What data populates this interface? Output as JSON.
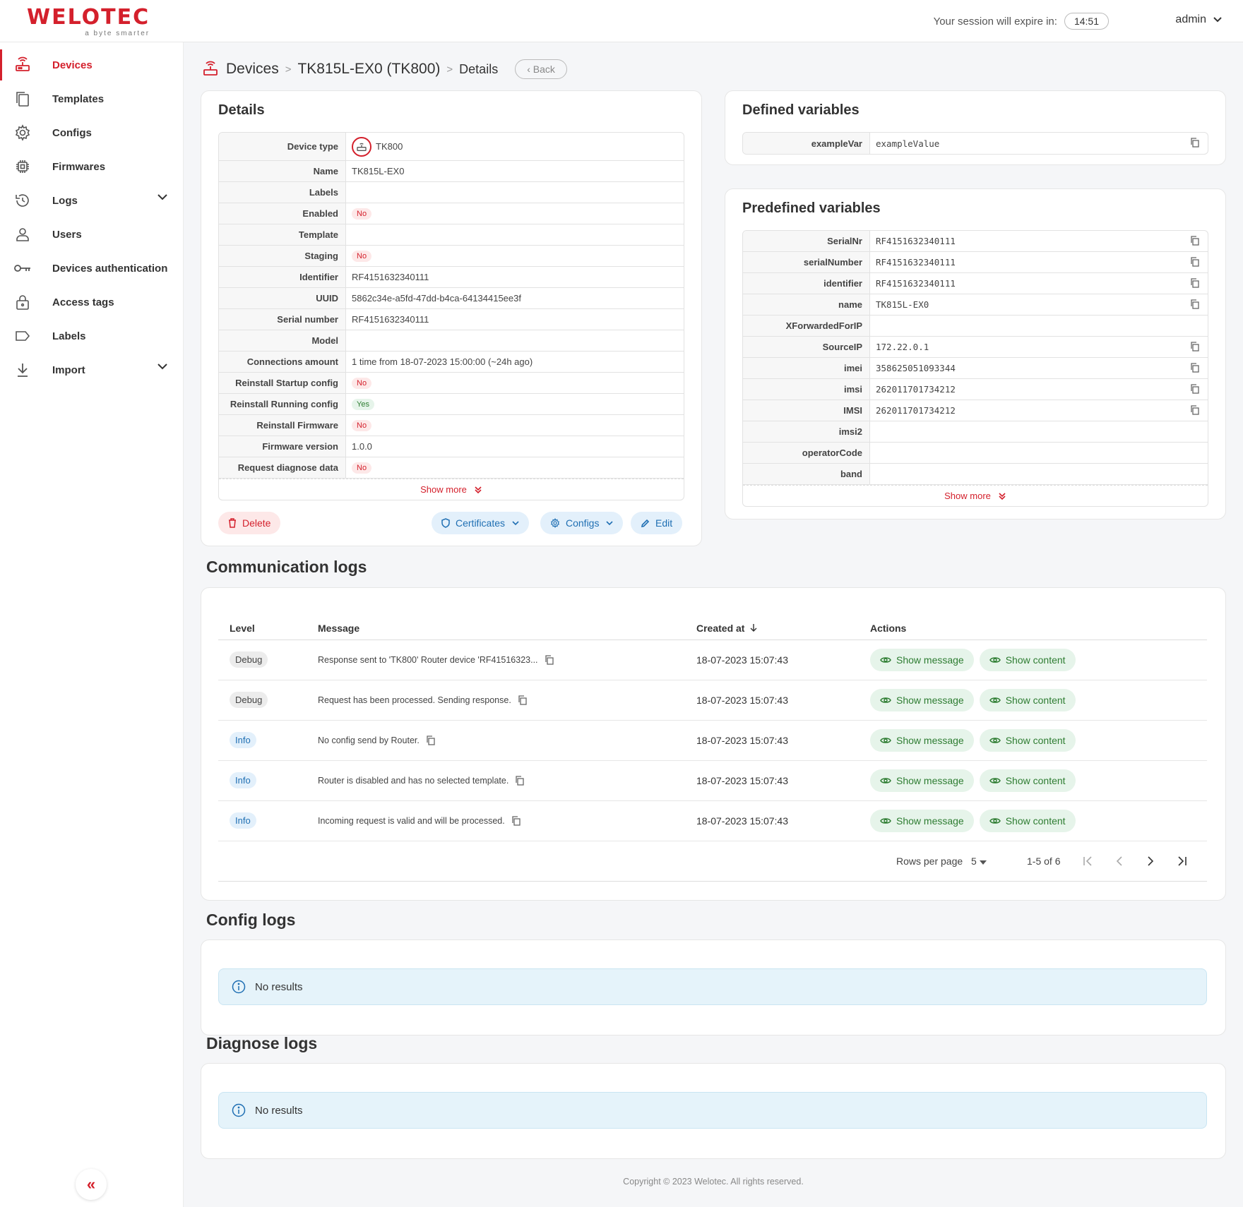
{
  "header": {
    "logo": "WELOTEC",
    "logo_tagline": "a byte smarter",
    "session_label": "Your session will expire in:",
    "session_timer": "14:51",
    "user": "admin"
  },
  "sidebar": {
    "items": [
      {
        "label": "Devices",
        "icon": "router-icon"
      },
      {
        "label": "Templates",
        "icon": "copy-icon"
      },
      {
        "label": "Configs",
        "icon": "gear-icon"
      },
      {
        "label": "Firmwares",
        "icon": "chip-icon"
      },
      {
        "label": "Logs",
        "icon": "history-icon"
      },
      {
        "label": "Users",
        "icon": "user-icon"
      },
      {
        "label": "Devices authentication",
        "icon": "key-icon"
      },
      {
        "label": "Access tags",
        "icon": "lock-icon"
      },
      {
        "label": "Labels",
        "icon": "label-icon"
      },
      {
        "label": "Import",
        "icon": "download-icon"
      }
    ],
    "collapse_glyph": "«"
  },
  "breadcrumb": {
    "root": "Devices",
    "sep": ">",
    "device": "TK815L-EX0 (TK800)",
    "page": "Details",
    "back": "Back"
  },
  "details": {
    "title": "Details",
    "device_type": "TK800",
    "rows": [
      {
        "key": "Device type",
        "value": ""
      },
      {
        "key": "Name",
        "value": "TK815L-EX0"
      },
      {
        "key": "Labels",
        "value": ""
      },
      {
        "key": "Enabled",
        "value": "No"
      },
      {
        "key": "Template",
        "value": ""
      },
      {
        "key": "Staging",
        "value": "No"
      },
      {
        "key": "Identifier",
        "value": "RF4151632340111"
      },
      {
        "key": "UUID",
        "value": "5862c34e-a5fd-47dd-b4ca-64134415ee3f"
      },
      {
        "key": "Serial number",
        "value": "RF4151632340111"
      },
      {
        "key": "Model",
        "value": ""
      },
      {
        "key": "Connections amount",
        "value": "1 time from 18-07-2023 15:00:00 (~24h ago)"
      },
      {
        "key": "Reinstall Startup config",
        "value": "No"
      },
      {
        "key": "Reinstall Running config",
        "value": "Yes"
      },
      {
        "key": "Reinstall Firmware",
        "value": "No"
      },
      {
        "key": "Firmware version",
        "value": "1.0.0"
      },
      {
        "key": "Request diagnose data",
        "value": "No"
      }
    ],
    "show_more": "Show more",
    "actions": {
      "delete": "Delete",
      "certificates": "Certificates",
      "configs": "Configs",
      "edit": "Edit"
    }
  },
  "defined_vars": {
    "title": "Defined variables",
    "rows": [
      {
        "key": "exampleVar",
        "value": "exampleValue"
      }
    ]
  },
  "predefined_vars": {
    "title": "Predefined variables",
    "rows": [
      {
        "key": "SerialNr",
        "value": "RF4151632340111"
      },
      {
        "key": "serialNumber",
        "value": "RF4151632340111"
      },
      {
        "key": "identifier",
        "value": "RF4151632340111"
      },
      {
        "key": "name",
        "value": "TK815L-EX0"
      },
      {
        "key": "XForwardedForIP",
        "value": ""
      },
      {
        "key": "SourceIP",
        "value": "172.22.0.1"
      },
      {
        "key": "imei",
        "value": "358625051093344"
      },
      {
        "key": "imsi",
        "value": "262011701734212"
      },
      {
        "key": "IMSI",
        "value": "262011701734212"
      },
      {
        "key": "imsi2",
        "value": ""
      },
      {
        "key": "operatorCode",
        "value": ""
      },
      {
        "key": "band",
        "value": ""
      }
    ],
    "show_more": "Show more"
  },
  "comm_logs": {
    "title": "Communication logs",
    "columns": {
      "level": "Level",
      "message": "Message",
      "created": "Created at",
      "actions": "Actions"
    },
    "rows": [
      {
        "level": "Debug",
        "message": "Response sent to 'TK800' Router device 'RF41516323...",
        "created": "18-07-2023 15:07:43"
      },
      {
        "level": "Debug",
        "message": "Request has been processed. Sending response.",
        "created": "18-07-2023 15:07:43"
      },
      {
        "level": "Info",
        "message": "No config send by Router.",
        "created": "18-07-2023 15:07:43"
      },
      {
        "level": "Info",
        "message": "Router is disabled and has no selected template.",
        "created": "18-07-2023 15:07:43"
      },
      {
        "level": "Info",
        "message": "Incoming request is valid and will be processed.",
        "created": "18-07-2023 15:07:43"
      }
    ],
    "show_message": "Show message",
    "show_content": "Show content",
    "pager": {
      "rows_label": "Rows per page",
      "rows_value": "5",
      "range": "1-5 of 6"
    }
  },
  "config_logs": {
    "title": "Config logs",
    "empty": "No results"
  },
  "diagnose_logs": {
    "title": "Diagnose logs",
    "empty": "No results"
  },
  "footer": "Copyright © 2023 Welotec. All rights reserved.",
  "colors": {
    "brand": "#d4202c",
    "info": "#1f6fb3",
    "success": "#2e7d32"
  }
}
